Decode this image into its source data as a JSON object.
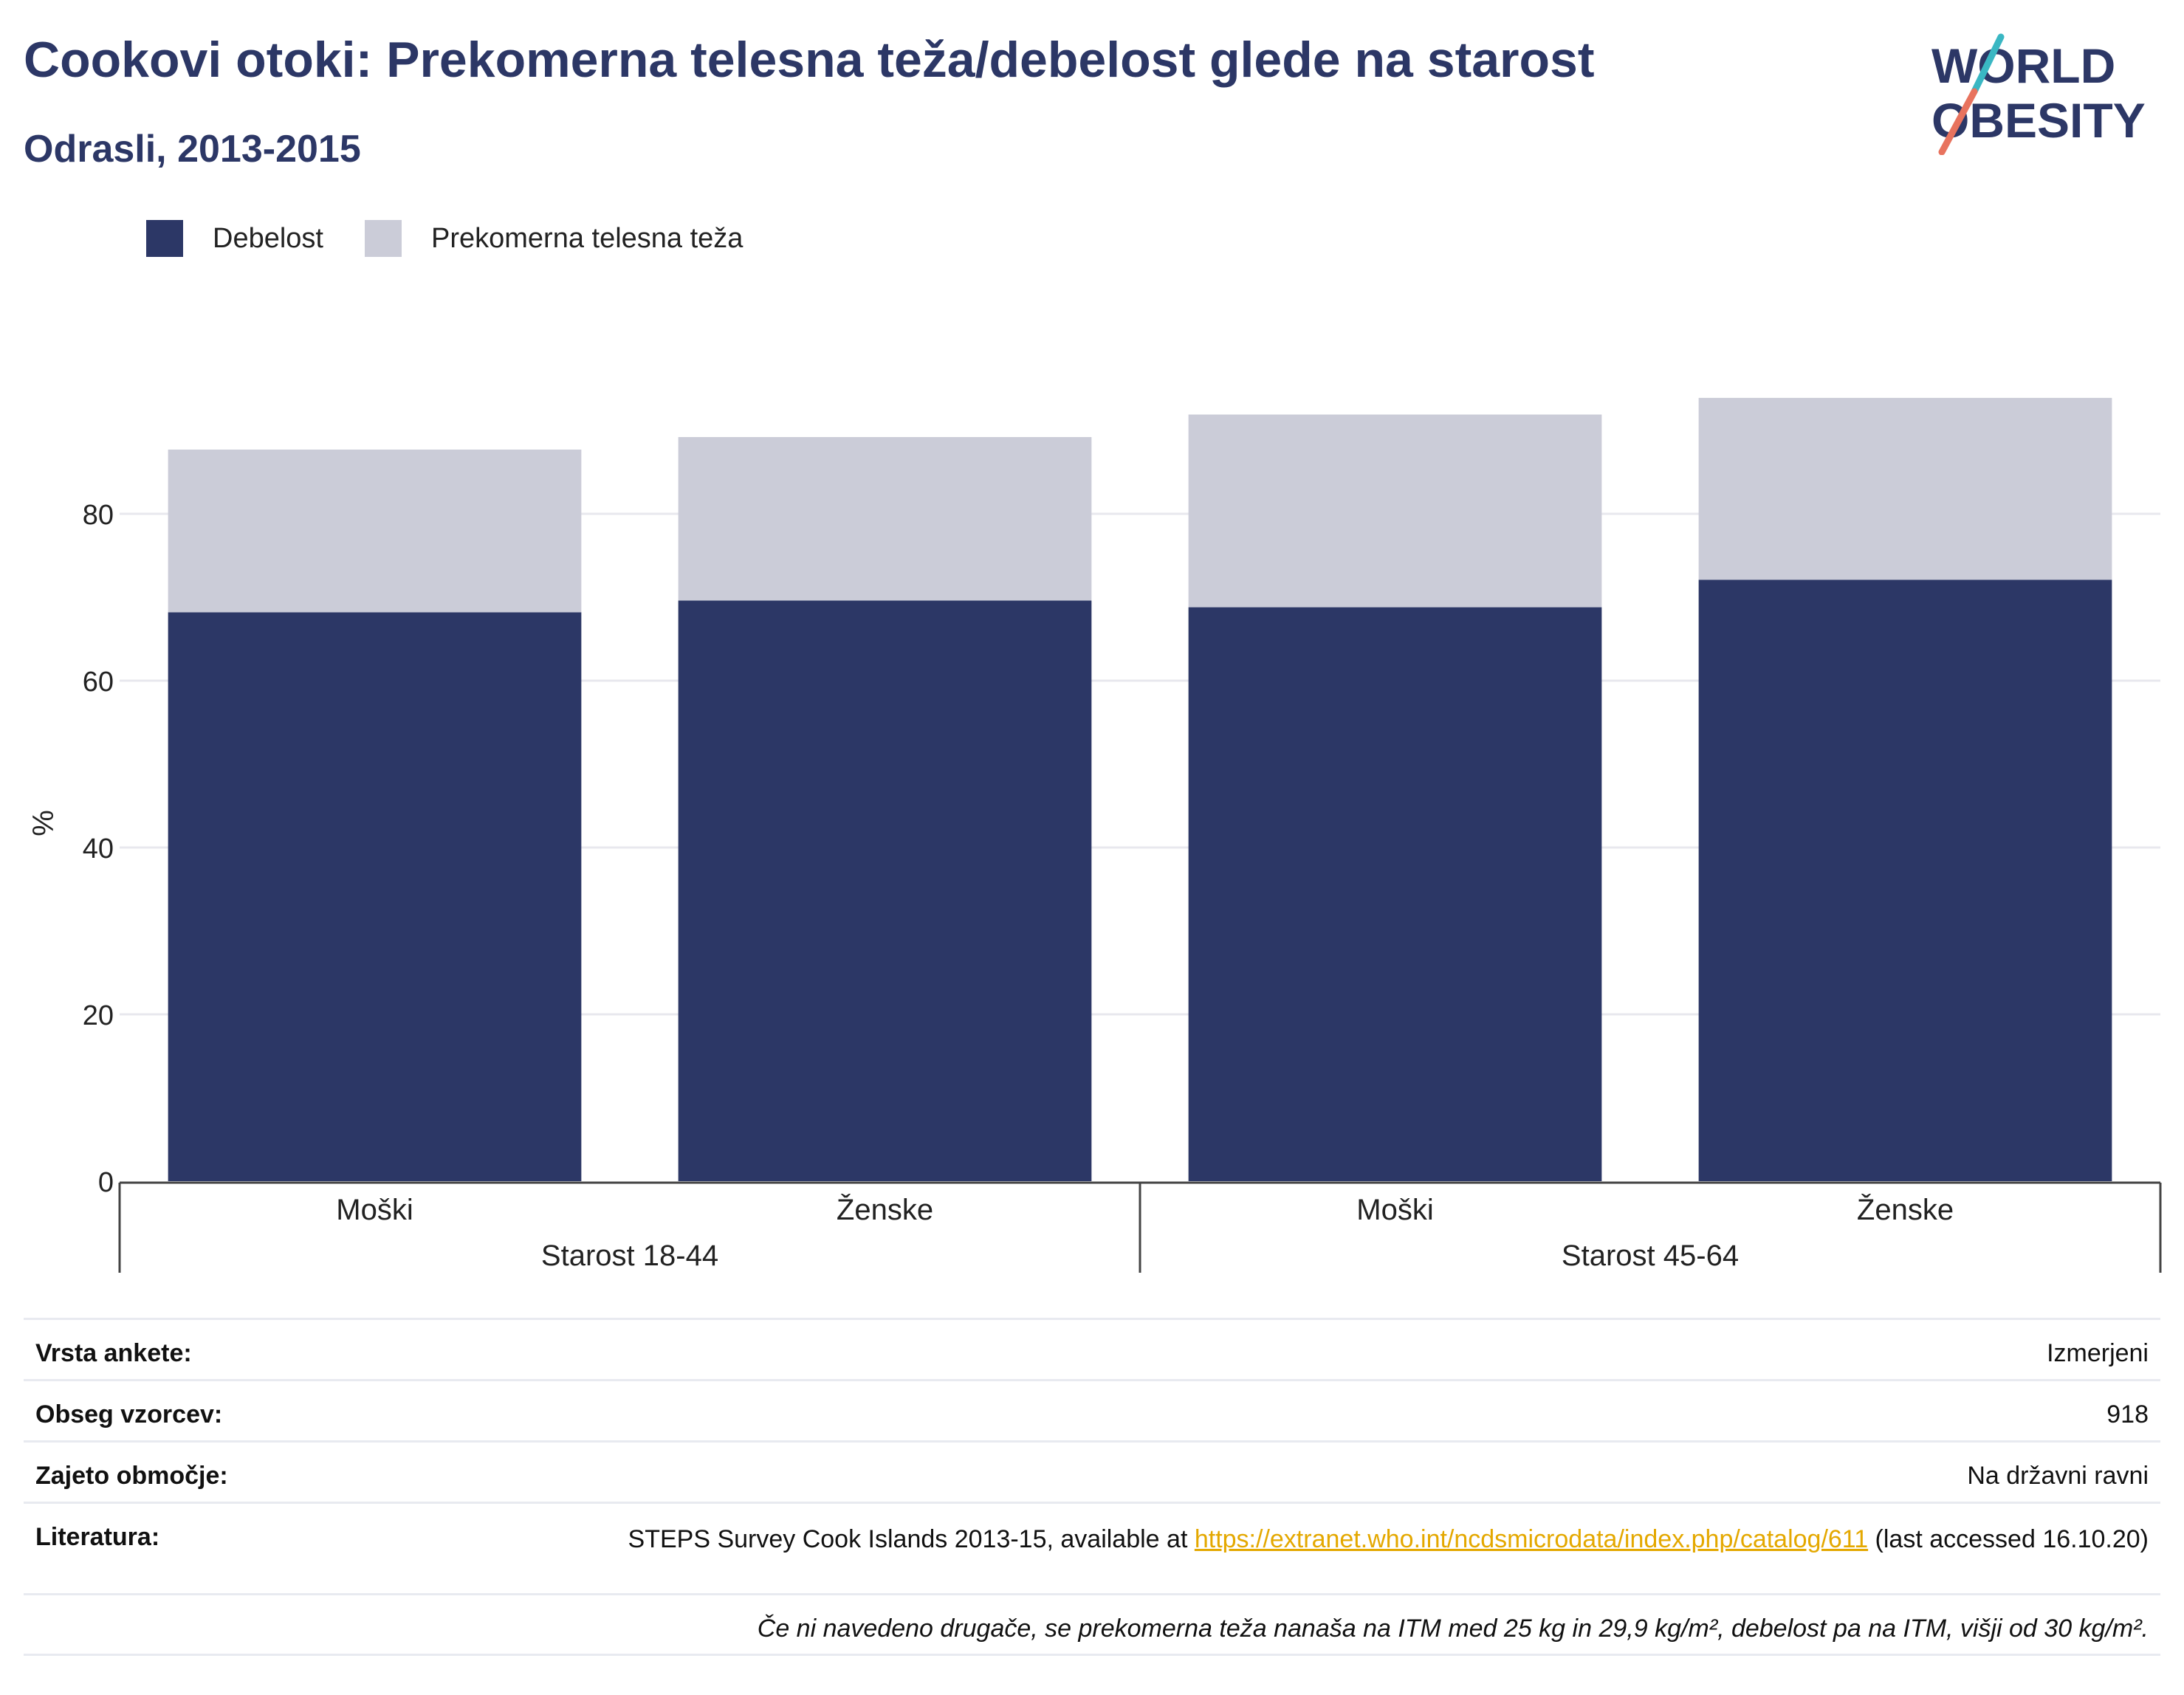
{
  "header": {
    "title": "Cookovi otoki: Prekomerna telesna teža/debelost glede na starost",
    "subtitle": "Odrasli, 2013-2015"
  },
  "logo": {
    "line1": "WORLD",
    "line2": "OBESITY"
  },
  "colors": {
    "obesity": "#2c3766",
    "overweight": "#cbccd8",
    "title": "#2c3766",
    "link": "#e4a800"
  },
  "chart_data": {
    "type": "bar",
    "stacked": true,
    "ylabel": "%",
    "ylim": [
      0,
      100
    ],
    "yticks": [
      0,
      20,
      40,
      60,
      80
    ],
    "grid": true,
    "legend_position": "top-left",
    "categories": [
      "Moški",
      "Ženske",
      "Moški",
      "Ženske"
    ],
    "groups": [
      {
        "label": "Starost 18-44",
        "members": [
          0,
          1
        ]
      },
      {
        "label": "Starost 45-64",
        "members": [
          2,
          3
        ]
      }
    ],
    "series": [
      {
        "name": "Debelost",
        "values": [
          68.2,
          69.6,
          68.8,
          72.1
        ]
      },
      {
        "name": "Prekomerna telesna teža",
        "values": [
          19.5,
          19.6,
          23.1,
          21.8
        ]
      }
    ]
  },
  "info": {
    "survey_type": {
      "label": "Vrsta ankete:",
      "value": "Izmerjeni"
    },
    "sample_size": {
      "label": "Obseg vzorcev:",
      "value": "918"
    },
    "coverage": {
      "label": "Zajeto območje:",
      "value": "Na državni ravni"
    },
    "reference": {
      "label": "Literatura:",
      "text_before": "STEPS Survey Cook Islands 2013-15, available at ",
      "link": "https://extranet.who.int/ncdsmicrodata/index.php/catalog/611",
      "text_after": " (last accessed 16.10.20)"
    },
    "note": "Če ni navedeno drugače, se prekomerna teža nanaša na ITM med 25 kg in 29,9 kg/m², debelost pa na ITM, višji od 30 kg/m²."
  }
}
